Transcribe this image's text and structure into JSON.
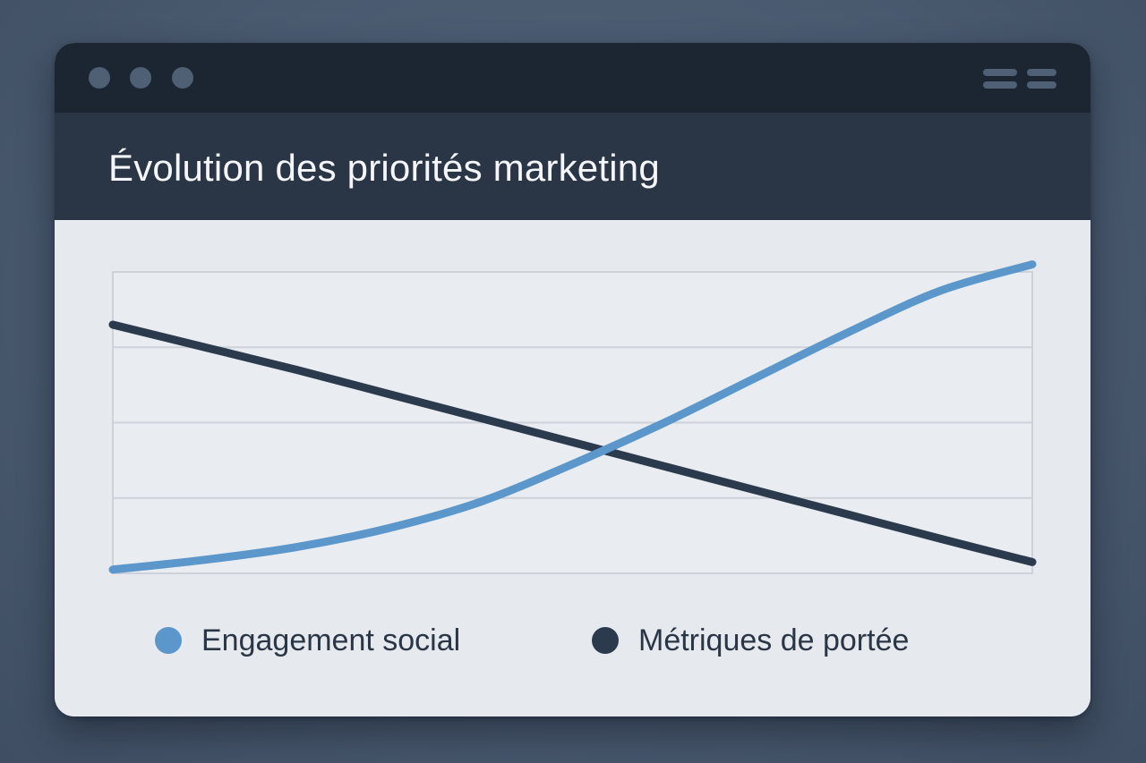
{
  "window": {
    "title": "Évolution des priorités marketing",
    "controls": [
      "close-dot",
      "minimize-dot",
      "maximize-dot"
    ],
    "menu_icon": "menu-icon"
  },
  "colors": {
    "engagement": "#5b97cb",
    "portee": "#2b3a4d",
    "grid": "#cdd2da"
  },
  "chart_data": {
    "type": "line",
    "title": "Évolution des priorités marketing",
    "xlabel": "",
    "ylabel": "",
    "x": [
      0,
      1,
      2,
      3,
      4,
      5,
      6,
      7,
      8,
      9,
      10
    ],
    "xlim": [
      0,
      10
    ],
    "ylim": [
      0,
      4
    ],
    "grid": true,
    "legend_position": "bottom",
    "series": [
      {
        "name": "Engagement social",
        "color": "#5b97cb",
        "values": [
          0.05,
          0.18,
          0.35,
          0.6,
          0.95,
          1.45,
          2.0,
          2.6,
          3.2,
          3.75,
          4.1
        ]
      },
      {
        "name": "Métriques de portée",
        "color": "#2b3a4d",
        "values": [
          3.3,
          3.0,
          2.7,
          2.38,
          2.06,
          1.74,
          1.42,
          1.1,
          0.78,
          0.46,
          0.15
        ]
      }
    ]
  }
}
